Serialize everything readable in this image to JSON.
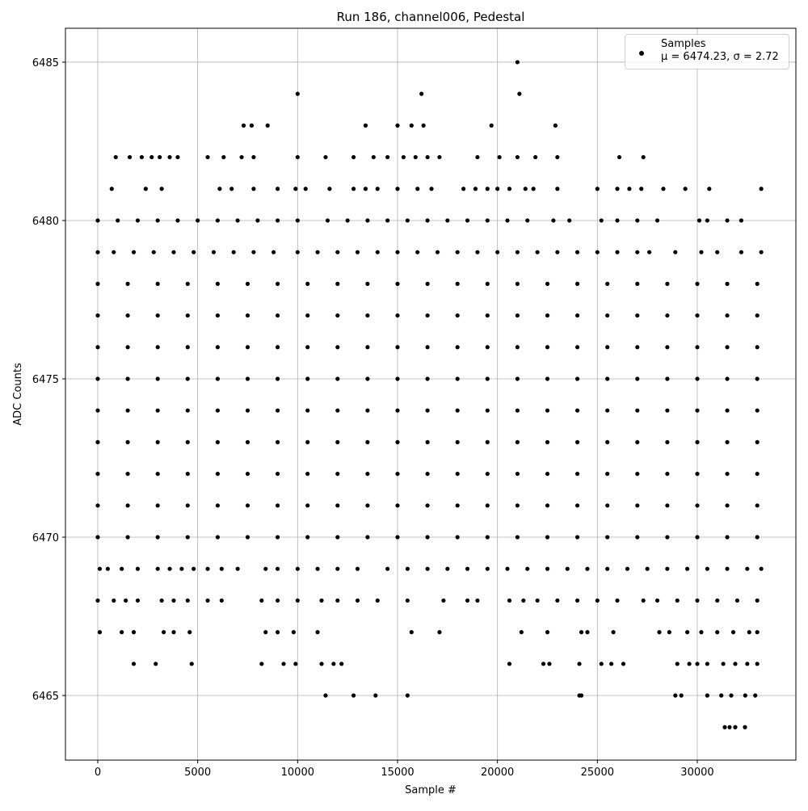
{
  "chart_data": {
    "type": "scatter",
    "title": "Run 186, channel006, Pedestal",
    "x_label": "Sample #",
    "y_label": "ADC Counts",
    "xlim": [
      -1617,
      34933
    ],
    "ylim": [
      6462.96,
      6486.07
    ],
    "xticks": [
      0,
      5000,
      10000,
      15000,
      20000,
      25000,
      30000
    ],
    "yticks": [
      6465,
      6470,
      6475,
      6480,
      6485
    ],
    "grid": true,
    "legend": "upper right",
    "x": [
      21000,
      10000,
      16200,
      21100,
      7300,
      7700,
      8500,
      13400,
      15000,
      15700,
      16300,
      19700,
      22900,
      900,
      1600,
      2200,
      2700,
      3100,
      3600,
      4000,
      5500,
      6300,
      7200,
      7800,
      10000,
      11400,
      12800,
      13800,
      14500,
      15300,
      15900,
      16500,
      17100,
      19000,
      20100,
      21000,
      21900,
      23000,
      26100,
      27300,
      700,
      2400,
      3200,
      6100,
      6700,
      7800,
      9000,
      9900,
      10400,
      11600,
      12800,
      13400,
      14000,
      15000,
      16000,
      16700,
      18300,
      18900,
      19500,
      20000,
      20600,
      21400,
      21800,
      23000,
      25000,
      26000,
      26600,
      27200,
      28300,
      29400,
      30600,
      33200,
      0,
      1000,
      2000,
      3000,
      4000,
      5000,
      6000,
      7000,
      8000,
      9000,
      10000,
      11500,
      12500,
      13500,
      14500,
      15500,
      16500,
      17500,
      18500,
      19500,
      20500,
      21500,
      22800,
      23600,
      25200,
      26000,
      27000,
      28000,
      30100,
      30500,
      31500,
      32200,
      0,
      800,
      1800,
      2800,
      3800,
      4800,
      5800,
      6800,
      7800,
      8800,
      10000,
      11000,
      12000,
      13000,
      14000,
      15000,
      16000,
      17000,
      18000,
      19000,
      20000,
      21000,
      22000,
      23000,
      24000,
      25000,
      26000,
      27000,
      27600,
      28900,
      30200,
      31000,
      32200,
      33200,
      0,
      1500,
      3000,
      4500,
      6000,
      7500,
      9000,
      10500,
      12000,
      13500,
      15000,
      16500,
      18000,
      19500,
      21000,
      22500,
      24000,
      25500,
      27000,
      28500,
      30000,
      31500,
      33000,
      0,
      1500,
      3000,
      4500,
      6000,
      7500,
      9000,
      10500,
      12000,
      13500,
      15000,
      16500,
      18000,
      19500,
      21000,
      22500,
      24000,
      25500,
      27000,
      28500,
      30000,
      31500,
      33000,
      0,
      1500,
      3000,
      4500,
      6000,
      7500,
      9000,
      10500,
      12000,
      13500,
      15000,
      16500,
      18000,
      19500,
      21000,
      22500,
      24000,
      25500,
      27000,
      28500,
      30000,
      31500,
      33000,
      0,
      1500,
      3000,
      4500,
      6000,
      7500,
      9000,
      10500,
      12000,
      13500,
      15000,
      16500,
      18000,
      19500,
      21000,
      22500,
      24000,
      25500,
      27000,
      28500,
      30000,
      31500,
      33000,
      0,
      1500,
      3000,
      4500,
      6000,
      7500,
      9000,
      10500,
      12000,
      13500,
      15000,
      16500,
      18000,
      19500,
      21000,
      22500,
      24000,
      25500,
      27000,
      28500,
      30000,
      31500,
      33000,
      0,
      1500,
      3000,
      4500,
      6000,
      7500,
      9000,
      10500,
      12000,
      13500,
      15000,
      16500,
      18000,
      19500,
      21000,
      22500,
      24000,
      25500,
      27000,
      28500,
      30000,
      31500,
      33000,
      0,
      1500,
      3000,
      4500,
      6000,
      7500,
      9000,
      10500,
      12000,
      13500,
      15000,
      16500,
      18000,
      19500,
      21000,
      22500,
      24000,
      25500,
      27000,
      28500,
      30000,
      31500,
      33000,
      0,
      1500,
      3000,
      4500,
      6000,
      7500,
      9000,
      10500,
      12000,
      13500,
      15000,
      16500,
      18000,
      19500,
      21000,
      22500,
      24000,
      25500,
      27000,
      28500,
      30000,
      31500,
      33000,
      0,
      1500,
      3000,
      4500,
      6000,
      7500,
      9000,
      10500,
      12000,
      13500,
      15000,
      16500,
      18000,
      19500,
      21000,
      22500,
      24000,
      25500,
      27000,
      28500,
      30000,
      31500,
      33000,
      100,
      500,
      1200,
      2000,
      3000,
      3600,
      4200,
      4800,
      5500,
      6200,
      7000,
      8400,
      9000,
      10000,
      11000,
      12000,
      13000,
      14500,
      15500,
      16500,
      17500,
      18500,
      19500,
      20500,
      21500,
      22500,
      23500,
      24500,
      25500,
      26500,
      27500,
      28500,
      29500,
      30500,
      31500,
      32500,
      33200,
      0,
      800,
      1400,
      2000,
      3200,
      3800,
      4500,
      5500,
      6200,
      8200,
      9000,
      10000,
      11200,
      12000,
      13000,
      14000,
      15500,
      17300,
      18500,
      19000,
      20600,
      21300,
      22000,
      23000,
      24000,
      25000,
      26000,
      27300,
      28000,
      29000,
      30000,
      31000,
      32000,
      33000,
      100,
      1200,
      1800,
      3300,
      3800,
      4600,
      8400,
      9000,
      9800,
      11000,
      15700,
      17100,
      21200,
      22500,
      24200,
      24500,
      25800,
      28100,
      28600,
      29500,
      30200,
      31000,
      31800,
      32600,
      33000,
      1800,
      2900,
      4700,
      8200,
      9300,
      9900,
      11200,
      11800,
      12200,
      20600,
      22300,
      22600,
      24100,
      25200,
      25700,
      26300,
      29000,
      29600,
      30000,
      30500,
      31300,
      31900,
      32500,
      33000,
      11400,
      12800,
      13900,
      15500,
      24100,
      24200,
      28900,
      29200,
      30500,
      31200,
      31700,
      32400,
      32900,
      31374,
      31617,
      31900,
      32386
    ],
    "series": [
      {
        "name": "Samples\nμ = 6474.23, σ = 2.72",
        "color": "#000000",
        "values": [
          6485,
          6484,
          6484,
          6484,
          6483,
          6483,
          6483,
          6483,
          6483,
          6483,
          6483,
          6483,
          6483,
          6482,
          6482,
          6482,
          6482,
          6482,
          6482,
          6482,
          6482,
          6482,
          6482,
          6482,
          6482,
          6482,
          6482,
          6482,
          6482,
          6482,
          6482,
          6482,
          6482,
          6482,
          6482,
          6482,
          6482,
          6482,
          6482,
          6482,
          6481,
          6481,
          6481,
          6481,
          6481,
          6481,
          6481,
          6481,
          6481,
          6481,
          6481,
          6481,
          6481,
          6481,
          6481,
          6481,
          6481,
          6481,
          6481,
          6481,
          6481,
          6481,
          6481,
          6481,
          6481,
          6481,
          6481,
          6481,
          6481,
          6481,
          6481,
          6481,
          6480,
          6480,
          6480,
          6480,
          6480,
          6480,
          6480,
          6480,
          6480,
          6480,
          6480,
          6480,
          6480,
          6480,
          6480,
          6480,
          6480,
          6480,
          6480,
          6480,
          6480,
          6480,
          6480,
          6480,
          6480,
          6480,
          6480,
          6480,
          6480,
          6480,
          6480,
          6480,
          6479,
          6479,
          6479,
          6479,
          6479,
          6479,
          6479,
          6479,
          6479,
          6479,
          6479,
          6479,
          6479,
          6479,
          6479,
          6479,
          6479,
          6479,
          6479,
          6479,
          6479,
          6479,
          6479,
          6479,
          6479,
          6479,
          6479,
          6479,
          6479,
          6479,
          6479,
          6479,
          6479,
          6479,
          6478,
          6478,
          6478,
          6478,
          6478,
          6478,
          6478,
          6478,
          6478,
          6478,
          6478,
          6478,
          6478,
          6478,
          6478,
          6478,
          6478,
          6478,
          6478,
          6478,
          6478,
          6478,
          6478,
          6477,
          6477,
          6477,
          6477,
          6477,
          6477,
          6477,
          6477,
          6477,
          6477,
          6477,
          6477,
          6477,
          6477,
          6477,
          6477,
          6477,
          6477,
          6477,
          6477,
          6477,
          6477,
          6477,
          6476,
          6476,
          6476,
          6476,
          6476,
          6476,
          6476,
          6476,
          6476,
          6476,
          6476,
          6476,
          6476,
          6476,
          6476,
          6476,
          6476,
          6476,
          6476,
          6476,
          6476,
          6476,
          6476,
          6475,
          6475,
          6475,
          6475,
          6475,
          6475,
          6475,
          6475,
          6475,
          6475,
          6475,
          6475,
          6475,
          6475,
          6475,
          6475,
          6475,
          6475,
          6475,
          6475,
          6475,
          6475,
          6475,
          6474,
          6474,
          6474,
          6474,
          6474,
          6474,
          6474,
          6474,
          6474,
          6474,
          6474,
          6474,
          6474,
          6474,
          6474,
          6474,
          6474,
          6474,
          6474,
          6474,
          6474,
          6474,
          6474,
          6473,
          6473,
          6473,
          6473,
          6473,
          6473,
          6473,
          6473,
          6473,
          6473,
          6473,
          6473,
          6473,
          6473,
          6473,
          6473,
          6473,
          6473,
          6473,
          6473,
          6473,
          6473,
          6473,
          6472,
          6472,
          6472,
          6472,
          6472,
          6472,
          6472,
          6472,
          6472,
          6472,
          6472,
          6472,
          6472,
          6472,
          6472,
          6472,
          6472,
          6472,
          6472,
          6472,
          6472,
          6472,
          6472,
          6471,
          6471,
          6471,
          6471,
          6471,
          6471,
          6471,
          6471,
          6471,
          6471,
          6471,
          6471,
          6471,
          6471,
          6471,
          6471,
          6471,
          6471,
          6471,
          6471,
          6471,
          6471,
          6471,
          6470,
          6470,
          6470,
          6470,
          6470,
          6470,
          6470,
          6470,
          6470,
          6470,
          6470,
          6470,
          6470,
          6470,
          6470,
          6470,
          6470,
          6470,
          6470,
          6470,
          6470,
          6470,
          6470,
          6469,
          6469,
          6469,
          6469,
          6469,
          6469,
          6469,
          6469,
          6469,
          6469,
          6469,
          6469,
          6469,
          6469,
          6469,
          6469,
          6469,
          6469,
          6469,
          6469,
          6469,
          6469,
          6469,
          6469,
          6469,
          6469,
          6469,
          6469,
          6469,
          6469,
          6469,
          6469,
          6469,
          6469,
          6469,
          6469,
          6469,
          6468,
          6468,
          6468,
          6468,
          6468,
          6468,
          6468,
          6468,
          6468,
          6468,
          6468,
          6468,
          6468,
          6468,
          6468,
          6468,
          6468,
          6468,
          6468,
          6468,
          6468,
          6468,
          6468,
          6468,
          6468,
          6468,
          6468,
          6468,
          6468,
          6468,
          6468,
          6468,
          6468,
          6468,
          6467,
          6467,
          6467,
          6467,
          6467,
          6467,
          6467,
          6467,
          6467,
          6467,
          6467,
          6467,
          6467,
          6467,
          6467,
          6467,
          6467,
          6467,
          6467,
          6467,
          6467,
          6467,
          6467,
          6467,
          6467,
          6466,
          6466,
          6466,
          6466,
          6466,
          6466,
          6466,
          6466,
          6466,
          6466,
          6466,
          6466,
          6466,
          6466,
          6466,
          6466,
          6466,
          6466,
          6466,
          6466,
          6466,
          6466,
          6466,
          6466,
          6465,
          6465,
          6465,
          6465,
          6465,
          6465,
          6465,
          6465,
          6465,
          6465,
          6465,
          6465,
          6465,
          6464,
          6464,
          6464,
          6464
        ]
      }
    ]
  }
}
